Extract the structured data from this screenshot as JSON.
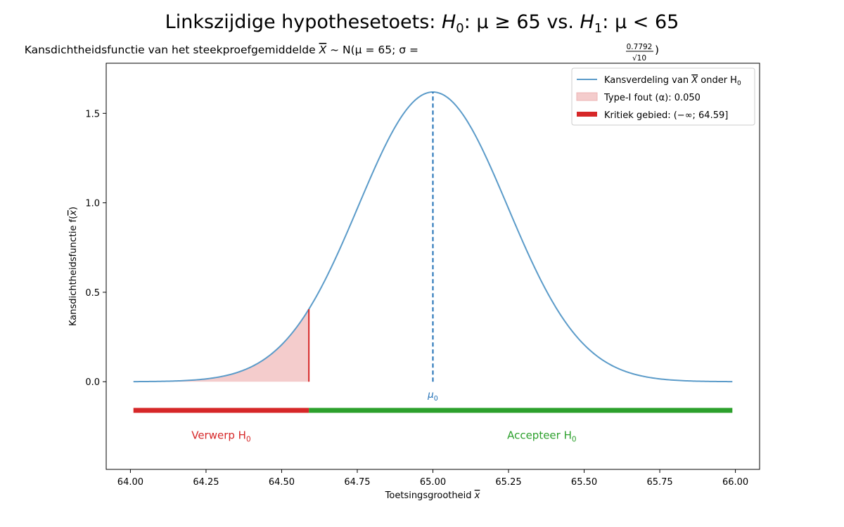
{
  "chart_data": {
    "type": "area",
    "title": {
      "lead": "Linkszijdige hypothesetoets: ",
      "h0": "H",
      "h0_sub": "0",
      "h0_rest": ": μ ≥ 65 vs. ",
      "h1": "H",
      "h1_sub": "1",
      "h1_rest": ": μ < 65"
    },
    "subtitle": {
      "lead": "Kansdichtheidsfunctie van het steekproefgemiddelde ",
      "xbar": "X",
      "middle": " ~ N(μ = 65; σ = ",
      "frac_num": "0.7792",
      "frac_den": "√10",
      "close": ")"
    },
    "xlabel": {
      "text": "Toetsingsgrootheid ",
      "var": "x"
    },
    "ylabel": {
      "text": "Kansdichtheidsfunctie f(",
      "var": "x",
      "close": ")"
    },
    "xlim": [
      63.92,
      66.08
    ],
    "ylim": [
      -0.49,
      1.78
    ],
    "xticks": [
      "64.00",
      "64.25",
      "64.50",
      "64.75",
      "65.00",
      "65.25",
      "65.50",
      "65.75",
      "66.00"
    ],
    "xtick_values": [
      64.0,
      64.25,
      64.5,
      64.75,
      65.0,
      65.25,
      65.5,
      65.75,
      66.0
    ],
    "yticks": [
      "0.0",
      "0.5",
      "1.0",
      "1.5"
    ],
    "ytick_values": [
      0.0,
      0.5,
      1.0,
      1.5
    ],
    "grid": false,
    "distribution": {
      "mean": 65,
      "sd_numerator": 0.7792,
      "n": 10,
      "x_min": 64.01,
      "x_max": 65.99
    },
    "critical_value": 64.59,
    "alpha": 0.05,
    "mu0_label": {
      "text": "μ",
      "sub": "0"
    },
    "region_bar_y": -0.16,
    "reject_label": {
      "text": "Verwerp H",
      "sub": "0",
      "x": 64.3,
      "y": -0.3
    },
    "accept_label": {
      "text": "Accepteer H",
      "sub": "0",
      "x": 65.36,
      "y": -0.3
    },
    "legend": {
      "position": "upper right",
      "entries": [
        {
          "text": "Kansverdeling van ",
          "var": "X",
          "rest": " onder H",
          "sub": "0"
        },
        {
          "text": "Type-I fout (α): 0.050"
        },
        {
          "text": "Kritiek gebied: (−∞; 64.59]"
        }
      ]
    },
    "colors": {
      "curve": "#5b9bc9",
      "mean_line": "#1f6fb5",
      "mu0_text": "#1f6fb5",
      "reject": "#d62728",
      "reject_fill": "#f4cccc",
      "accept": "#2ca02c",
      "axes": "#000000"
    }
  }
}
